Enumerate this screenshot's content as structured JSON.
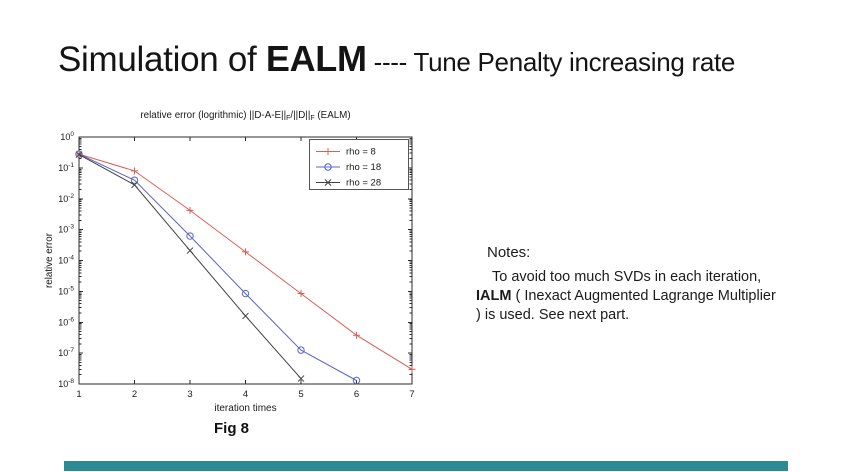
{
  "slide": {
    "title": {
      "prefix": "Simulation of ",
      "emph": "EALM",
      "dashes": " ---- ",
      "suffix": "Tune Penalty increasing rate"
    },
    "fig_caption": "Fig 8",
    "notes": {
      "heading": "Notes:",
      "body_text": "To avoid too much SVDs in each iteration, IALM ( Inexact Augmented Lagrange Multiplier ) is used. See next part.",
      "body_parts": [
        {
          "text": "To avoid too much SVDs in each iteration, ",
          "bold": false
        },
        {
          "text": "IALM",
          "bold": true
        },
        {
          "text": " ( Inexact Augmented Lagrange Multiplier ) is used. See next part.",
          "bold": false
        }
      ]
    },
    "footer_color": "#2b8a93"
  },
  "chart_data": {
    "type": "line",
    "title_text": "relative error (logrithmic) ||D-A-E||F/||D||F (EALM)",
    "title_parts": {
      "p1": "relative error (logrithmic) ||D-A-E||",
      "sub1": "F",
      "p2": "/||D||",
      "sub2": "F",
      "p3": " (EALM)"
    },
    "xlabel": "iteration times",
    "ylabel": "relative error",
    "x_ticks": [
      1,
      2,
      3,
      4,
      5,
      6,
      7
    ],
    "xlim": [
      1,
      7
    ],
    "y_scale": "log",
    "y_tick_exponents": [
      0,
      -1,
      -2,
      -3,
      -4,
      -5,
      -6,
      -7,
      -8
    ],
    "ylim": [
      1e-08,
      1
    ],
    "grid": false,
    "legend_position": "top-right",
    "axis_color": "#2b2b2b",
    "series": [
      {
        "name": "rho = 8",
        "color": "#d95f55",
        "marker": "plus",
        "x": [
          1,
          2,
          3,
          4,
          5,
          6,
          7
        ],
        "y": [
          0.28,
          0.08,
          0.0042,
          0.00019,
          8.5e-06,
          3.8e-07,
          3e-08
        ]
      },
      {
        "name": "rho = 18",
        "color": "#5b63c8",
        "marker": "circle",
        "x": [
          1,
          2,
          3,
          4,
          5,
          6
        ],
        "y": [
          0.28,
          0.04,
          0.00062,
          8.5e-06,
          1.25e-07,
          1.3e-08
        ]
      },
      {
        "name": "rho = 28",
        "color": "#404040",
        "marker": "x",
        "x": [
          1,
          2,
          3,
          4,
          5
        ],
        "y": [
          0.27,
          0.028,
          0.00021,
          1.6e-06,
          1.5e-08
        ]
      }
    ]
  }
}
